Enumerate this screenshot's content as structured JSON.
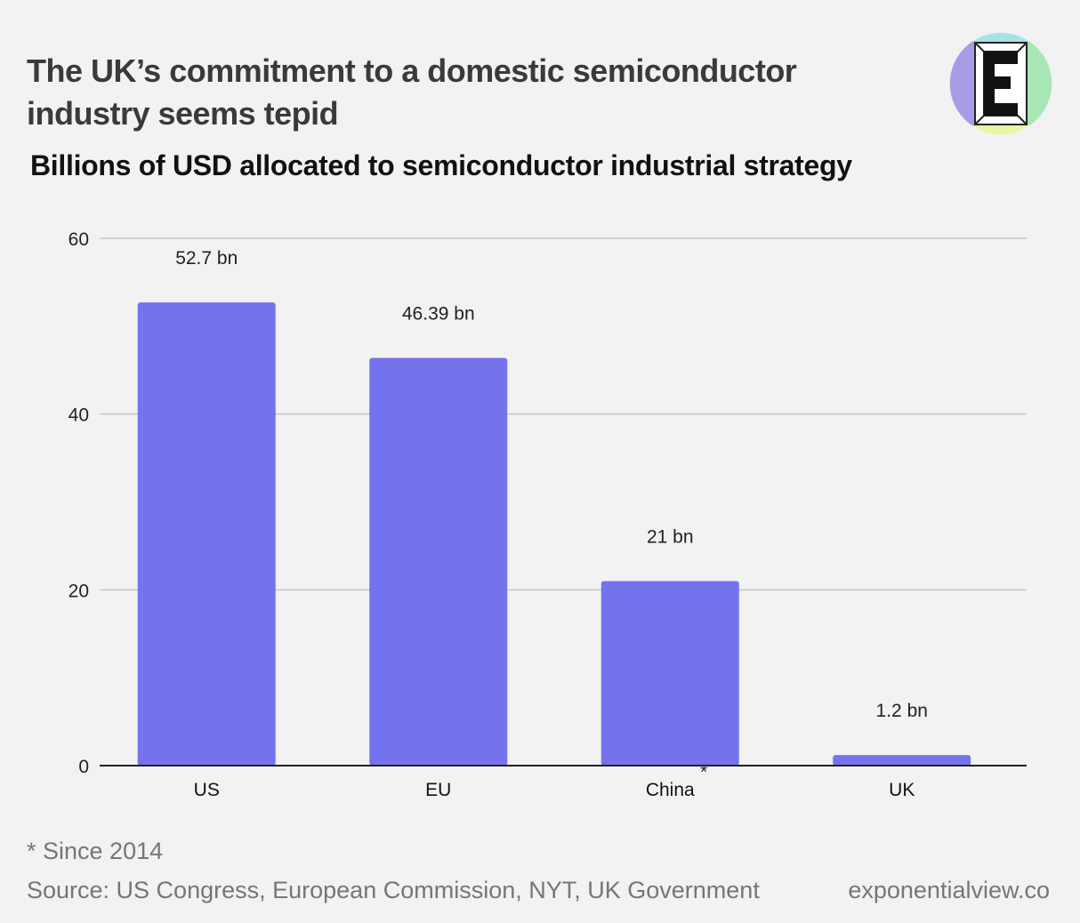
{
  "header": {
    "title": "The UK’s commitment to a domestic semiconductor industry seems tepid",
    "subtitle": "Billions of USD allocated to semiconductor industrial strategy"
  },
  "logo": {
    "letter": "E",
    "colors": [
      "#a6e3e6",
      "#a8e6b5",
      "#e9f5a0",
      "#a79de6"
    ]
  },
  "chart_data": {
    "type": "bar",
    "categories": [
      "US",
      "EU",
      "China",
      "UK"
    ],
    "values": [
      52.7,
      46.39,
      21,
      1.2
    ],
    "data_labels": [
      "52.7 bn",
      "46.39 bn",
      "21 bn",
      "1.2 bn"
    ],
    "category_marks": [
      "",
      "",
      "*",
      ""
    ],
    "yticks": [
      0,
      20,
      40,
      60
    ],
    "ylim": [
      0,
      60
    ],
    "grid": true,
    "bar_color": "#7572ee"
  },
  "footer": {
    "note": "* Since 2014",
    "source": "Source: US Congress, European Commission, NYT, UK Government",
    "site": "exponentialview.co"
  }
}
